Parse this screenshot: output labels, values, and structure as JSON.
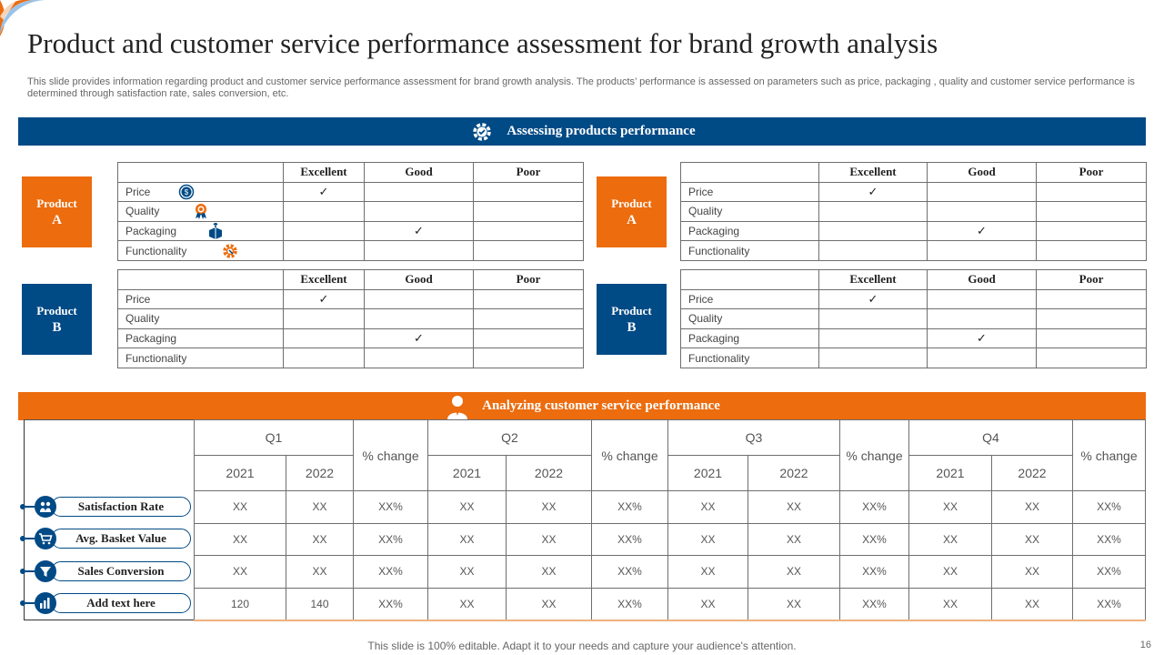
{
  "title": "Product and customer service performance assessment for brand growth analysis",
  "subtitle": "This slide provides information regarding product and customer service performance assessment for brand growth analysis. The products’ performance is assessed  on parameters such as price, packaging , quality and customer service performance is determined through satisfaction rate, sales conversion, etc.",
  "products_section": {
    "banner": "Assessing  products performance",
    "headers": [
      "Excellent",
      "Good",
      "Poor"
    ],
    "params": [
      "Price",
      "Quality",
      "Packaging",
      "Functionality"
    ],
    "check_mark": "✓",
    "product_a": {
      "line1": "Product",
      "line2": "A"
    },
    "product_b": {
      "line1": "Product",
      "line2": "B"
    }
  },
  "customer_section": {
    "banner": "Analyzing customer service performance",
    "quarters": [
      "Q1",
      "Q2",
      "Q3",
      "Q4"
    ],
    "years": [
      "2021",
      "2022"
    ],
    "change_label": "% change",
    "metrics": [
      "Satisfaction Rate",
      "Avg. Basket Value",
      "Sales Conversion",
      "Add text here"
    ],
    "rows": [
      [
        "XX",
        "XX",
        "XX%",
        "XX",
        "XX",
        "XX%",
        "XX",
        "XX",
        "XX%",
        "XX",
        "XX",
        "XX%"
      ],
      [
        "XX",
        "XX",
        "XX%",
        "XX",
        "XX",
        "XX%",
        "XX",
        "XX",
        "XX%",
        "XX",
        "XX",
        "XX%"
      ],
      [
        "XX",
        "XX",
        "XX%",
        "XX",
        "XX",
        "XX%",
        "XX",
        "XX",
        "XX%",
        "XX",
        "XX",
        "XX%"
      ],
      [
        "120",
        "140",
        "XX%",
        "XX",
        "XX",
        "XX%",
        "XX",
        "XX",
        "XX%",
        "XX",
        "XX",
        "XX%"
      ]
    ]
  },
  "footer": "This slide is 100% editable. Adapt it to your needs and capture your audience's attention.",
  "page_number": "16",
  "colors": {
    "blue": "#004a86",
    "orange": "#ec6c0e"
  }
}
